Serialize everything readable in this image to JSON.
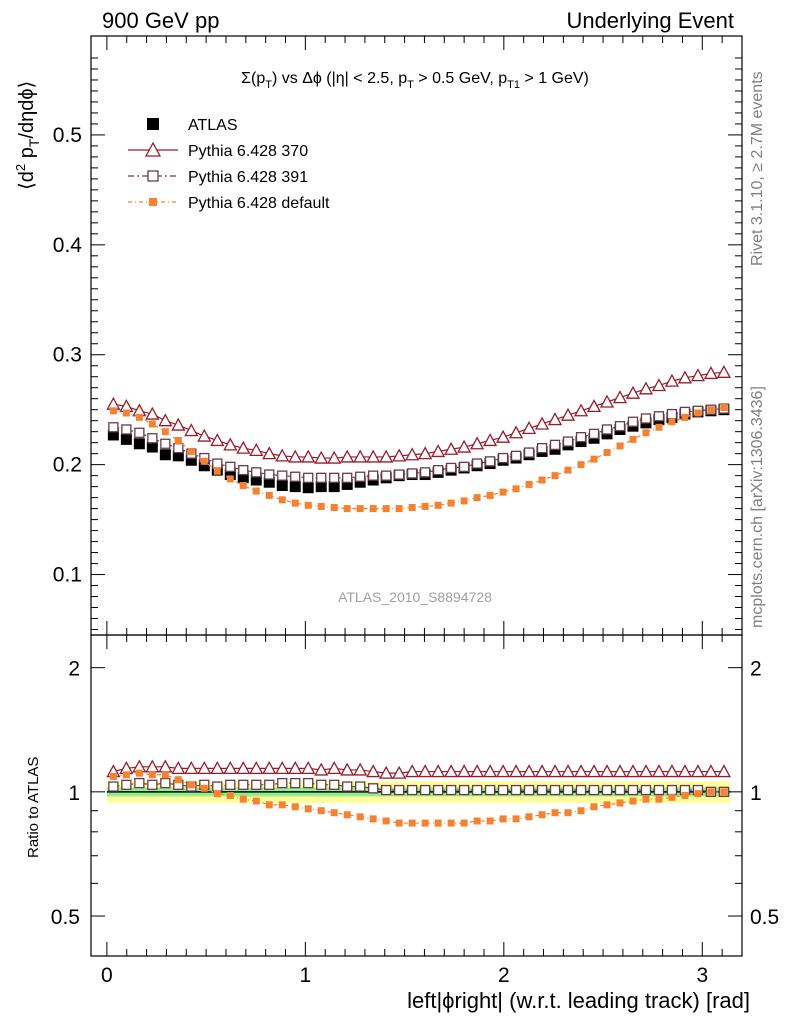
{
  "header": {
    "left": "900 GeV pp",
    "right": "Underlying Event"
  },
  "side": {
    "rivet": "Rivet 3.1.10, ≥ 2.7M events",
    "mcplots": "mcplots.cern.ch [arXiv:1306.3436]"
  },
  "watermark": "ATLAS_2010_S8894728",
  "main_ylabel": "⟨d² p_T/dηdϕ⟩",
  "ratio_ylabel": "Ratio to ATLAS",
  "xlabel": "left|ϕright| (w.r.t. leading track) [rad]",
  "colors": {
    "atlas": "#000000",
    "p370": "#9a1c2c",
    "p391": "#6b3a4a",
    "pdefault": "#f58231",
    "band_green": "#90ee90",
    "band_yellow": "#ffff99"
  },
  "chart_data": [
    {
      "type": "scatter",
      "title": "Σ(p_T) vs Δϕ (|η| < 2.5, p_T > 0.5 GeV, p_T1 > 1 GeV)",
      "xlabel": "left|ϕright| (w.r.t. leading track) [rad]",
      "ylabel": "⟨d² p_T/dηdϕ⟩",
      "xlim": [
        -0.08,
        3.2
      ],
      "ylim": [
        0.045,
        0.59
      ],
      "yticks": [
        0.1,
        0.2,
        0.3,
        0.4,
        0.5
      ],
      "ytick_labels": [
        "0.1",
        "0.2",
        "0.3",
        "0.4",
        "0.5"
      ],
      "legend_position": "top-left",
      "series": [
        {
          "name": "ATLAS",
          "marker": "filled-square",
          "values": [
            0.227,
            0.223,
            0.219,
            0.216,
            0.209,
            0.208,
            0.204,
            0.199,
            0.195,
            0.191,
            0.188,
            0.186,
            0.184,
            0.181,
            0.18,
            0.179,
            0.18,
            0.18,
            0.182,
            0.184,
            0.186,
            0.188,
            0.19,
            0.191,
            0.191,
            0.193,
            0.195,
            0.197,
            0.199,
            0.201,
            0.204,
            0.206,
            0.209,
            0.212,
            0.214,
            0.218,
            0.221,
            0.224,
            0.228,
            0.232,
            0.235,
            0.238,
            0.241,
            0.243,
            0.246,
            0.248,
            0.249,
            0.25
          ]
        },
        {
          "name": "Pythia 6.428 370",
          "marker": "open-triangle",
          "values": [
            0.255,
            0.253,
            0.249,
            0.246,
            0.24,
            0.236,
            0.231,
            0.226,
            0.222,
            0.218,
            0.215,
            0.213,
            0.21,
            0.208,
            0.207,
            0.207,
            0.206,
            0.206,
            0.207,
            0.207,
            0.207,
            0.207,
            0.208,
            0.209,
            0.21,
            0.212,
            0.214,
            0.216,
            0.219,
            0.222,
            0.225,
            0.229,
            0.233,
            0.237,
            0.241,
            0.245,
            0.249,
            0.253,
            0.257,
            0.261,
            0.265,
            0.269,
            0.272,
            0.276,
            0.279,
            0.281,
            0.283,
            0.284
          ]
        },
        {
          "name": "Pythia 6.428 391",
          "marker": "open-square",
          "values": [
            0.234,
            0.232,
            0.229,
            0.224,
            0.219,
            0.215,
            0.21,
            0.206,
            0.201,
            0.198,
            0.195,
            0.193,
            0.191,
            0.19,
            0.189,
            0.188,
            0.188,
            0.188,
            0.188,
            0.189,
            0.19,
            0.19,
            0.191,
            0.192,
            0.193,
            0.195,
            0.197,
            0.198,
            0.201,
            0.203,
            0.206,
            0.208,
            0.211,
            0.215,
            0.218,
            0.221,
            0.225,
            0.228,
            0.232,
            0.235,
            0.239,
            0.242,
            0.244,
            0.246,
            0.248,
            0.249,
            0.25,
            0.251
          ]
        },
        {
          "name": "Pythia 6.428 default",
          "marker": "small-filled-square",
          "values": [
            0.249,
            0.247,
            0.243,
            0.237,
            0.23,
            0.222,
            0.212,
            0.203,
            0.194,
            0.187,
            0.181,
            0.176,
            0.172,
            0.168,
            0.165,
            0.163,
            0.162,
            0.161,
            0.16,
            0.16,
            0.16,
            0.16,
            0.16,
            0.161,
            0.162,
            0.163,
            0.165,
            0.167,
            0.17,
            0.172,
            0.175,
            0.178,
            0.182,
            0.186,
            0.19,
            0.195,
            0.2,
            0.205,
            0.211,
            0.217,
            0.223,
            0.229,
            0.234,
            0.239,
            0.243,
            0.247,
            0.25,
            0.252
          ]
        }
      ]
    },
    {
      "type": "scatter",
      "title": "",
      "xlabel": "left|ϕright| (w.r.t. leading track) [rad]",
      "ylabel": "Ratio to ATLAS",
      "xlim": [
        -0.08,
        3.2
      ],
      "ylim": [
        0.4,
        2.4
      ],
      "yscale": "log",
      "yticks": [
        0.5,
        1,
        2
      ],
      "ytick_labels": [
        "0.5",
        "1",
        "2"
      ],
      "xticks": [
        0,
        1,
        2,
        3
      ],
      "xtick_labels": [
        "0",
        "1",
        "2",
        "3"
      ],
      "reference_line": 1,
      "uncertainty_band": {
        "stat": 0.025,
        "total": 0.06
      },
      "series": [
        {
          "name": "Pythia 6.428 370",
          "values": [
            1.12,
            1.14,
            1.15,
            1.15,
            1.15,
            1.14,
            1.14,
            1.14,
            1.14,
            1.14,
            1.14,
            1.14,
            1.14,
            1.14,
            1.14,
            1.14,
            1.13,
            1.14,
            1.13,
            1.13,
            1.12,
            1.11,
            1.11,
            1.12,
            1.12,
            1.12,
            1.12,
            1.12,
            1.12,
            1.12,
            1.12,
            1.12,
            1.12,
            1.12,
            1.12,
            1.12,
            1.12,
            1.12,
            1.12,
            1.12,
            1.12,
            1.12,
            1.12,
            1.12,
            1.12,
            1.12,
            1.12,
            1.12
          ]
        },
        {
          "name": "Pythia 6.428 391",
          "values": [
            1.03,
            1.04,
            1.05,
            1.04,
            1.05,
            1.04,
            1.03,
            1.04,
            1.03,
            1.04,
            1.04,
            1.04,
            1.04,
            1.05,
            1.05,
            1.05,
            1.04,
            1.04,
            1.03,
            1.03,
            1.02,
            1.01,
            1.01,
            1.01,
            1.01,
            1.01,
            1.01,
            1.01,
            1.01,
            1.01,
            1.01,
            1.01,
            1.01,
            1.01,
            1.01,
            1.01,
            1.01,
            1.01,
            1.01,
            1.01,
            1.01,
            1.01,
            1.01,
            1.01,
            1.01,
            1.01,
            1.0,
            1.0
          ]
        },
        {
          "name": "Pythia 6.428 default",
          "values": [
            1.09,
            1.1,
            1.11,
            1.1,
            1.1,
            1.07,
            1.04,
            1.02,
            0.99,
            0.98,
            0.96,
            0.95,
            0.93,
            0.93,
            0.92,
            0.91,
            0.9,
            0.89,
            0.88,
            0.87,
            0.86,
            0.85,
            0.84,
            0.84,
            0.84,
            0.84,
            0.84,
            0.84,
            0.85,
            0.85,
            0.86,
            0.86,
            0.87,
            0.88,
            0.89,
            0.89,
            0.9,
            0.92,
            0.93,
            0.94,
            0.95,
            0.96,
            0.96,
            0.97,
            0.98,
            0.99,
            1.0,
            1.0
          ]
        }
      ]
    }
  ]
}
